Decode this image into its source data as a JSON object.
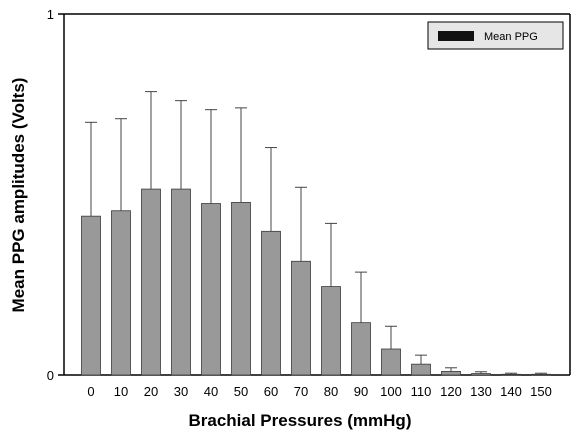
{
  "chart_data": {
    "type": "bar",
    "title": "",
    "xlabel": "Brachial Pressures (mmHg)",
    "ylabel": "Mean PPG amplitudes (Volts)",
    "categories": [
      "0",
      "10",
      "20",
      "30",
      "40",
      "50",
      "60",
      "70",
      "80",
      "90",
      "100",
      "110",
      "120",
      "130",
      "140",
      "150"
    ],
    "series": [
      {
        "name": "Mean PPG",
        "values": [
          0.44,
          0.455,
          0.515,
          0.515,
          0.475,
          0.478,
          0.398,
          0.315,
          0.245,
          0.145,
          0.072,
          0.03,
          0.01,
          0.004,
          0.002,
          0.002
        ],
        "error_upper": [
          0.7,
          0.71,
          0.785,
          0.76,
          0.735,
          0.74,
          0.63,
          0.52,
          0.42,
          0.285,
          0.135,
          0.055,
          0.02,
          0.009,
          0.005,
          0.005
        ]
      }
    ],
    "ylim": [
      0,
      1
    ],
    "yticks": [
      "0",
      "1"
    ],
    "grid": false,
    "legend_position": "top-right",
    "colors": {
      "bar": "#999999",
      "legend_swatch": "#111111",
      "legend_bg": "#e6e6e6"
    }
  }
}
